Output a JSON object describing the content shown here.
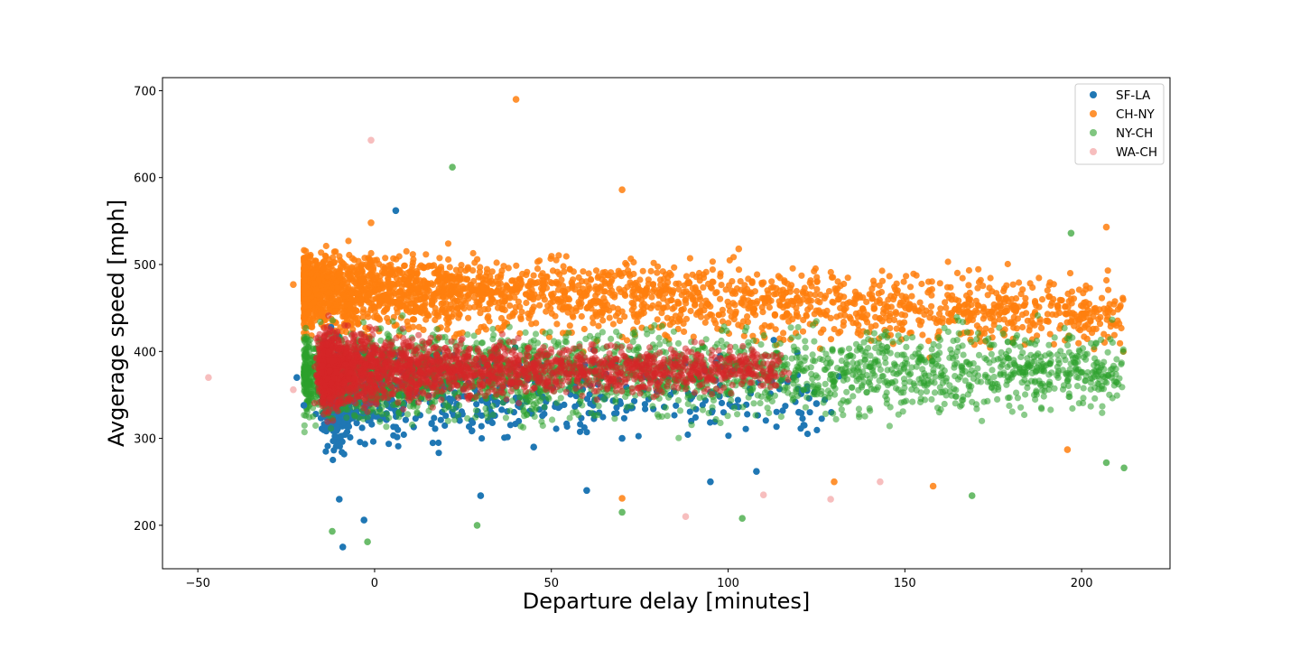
{
  "chart_data": {
    "type": "scatter",
    "title": "",
    "xlabel": "Departure delay [minutes]",
    "ylabel": "Avgerage speed [mph]",
    "xlim": [
      -60,
      225
    ],
    "ylim": [
      150,
      715
    ],
    "xticks": [
      -50,
      0,
      50,
      100,
      150,
      200
    ],
    "yticks": [
      200,
      300,
      400,
      500,
      600,
      700
    ],
    "xtick_labels": [
      "−50",
      "0",
      "50",
      "100",
      "150",
      "200"
    ],
    "ytick_labels": [
      "200",
      "300",
      "400",
      "500",
      "600",
      "700"
    ],
    "grid": false,
    "legend_position": "top-right",
    "series": [
      {
        "name": "SF-LA",
        "color": "#1f77b4",
        "opacity": 1.0,
        "description": "dense cluster near delay 0 with speeds ~300-450 mph, thinning out to 125 min",
        "points": [
          [
            6,
            562
          ],
          [
            -9,
            175
          ],
          [
            -3,
            206
          ],
          [
            60,
            240
          ],
          [
            95,
            250
          ],
          [
            108,
            262
          ],
          [
            30,
            234
          ],
          [
            -22,
            370
          ],
          [
            -20,
            338
          ],
          [
            -10,
            230
          ],
          [
            45,
            290
          ],
          [
            70,
            300
          ],
          [
            120,
            330
          ],
          [
            125,
            340
          ]
        ]
      },
      {
        "name": "CH-NY",
        "color": "#ff7f0e",
        "opacity": 0.85,
        "description": "band around 400-550 mph spanning delays -20 to 210 min",
        "points": [
          [
            40,
            690
          ],
          [
            70,
            586
          ],
          [
            -1,
            548
          ],
          [
            207,
            543
          ],
          [
            103,
            518
          ],
          [
            -23,
            477
          ],
          [
            70,
            231
          ],
          [
            158,
            245
          ],
          [
            196,
            287
          ],
          [
            130,
            250
          ]
        ]
      },
      {
        "name": "NY-CH",
        "color": "#2ca02c",
        "opacity": 0.55,
        "description": "band around 300-450 mph extending out to 212 min",
        "points": [
          [
            22,
            612
          ],
          [
            197,
            536
          ],
          [
            -12,
            193
          ],
          [
            -2,
            181
          ],
          [
            29,
            200
          ],
          [
            104,
            208
          ],
          [
            70,
            215
          ],
          [
            169,
            234
          ],
          [
            212,
            266
          ],
          [
            207,
            272
          ]
        ]
      },
      {
        "name": "WA-CH",
        "color": "#f4a3a3",
        "opacity": 0.7,
        "description": "dense red core near delay 0 with speeds 280-460 mph",
        "points": [
          [
            -1,
            643
          ],
          [
            -47,
            370
          ],
          [
            -23,
            356
          ],
          [
            88,
            210
          ],
          [
            129,
            230
          ],
          [
            143,
            250
          ],
          [
            110,
            235
          ]
        ]
      }
    ]
  }
}
